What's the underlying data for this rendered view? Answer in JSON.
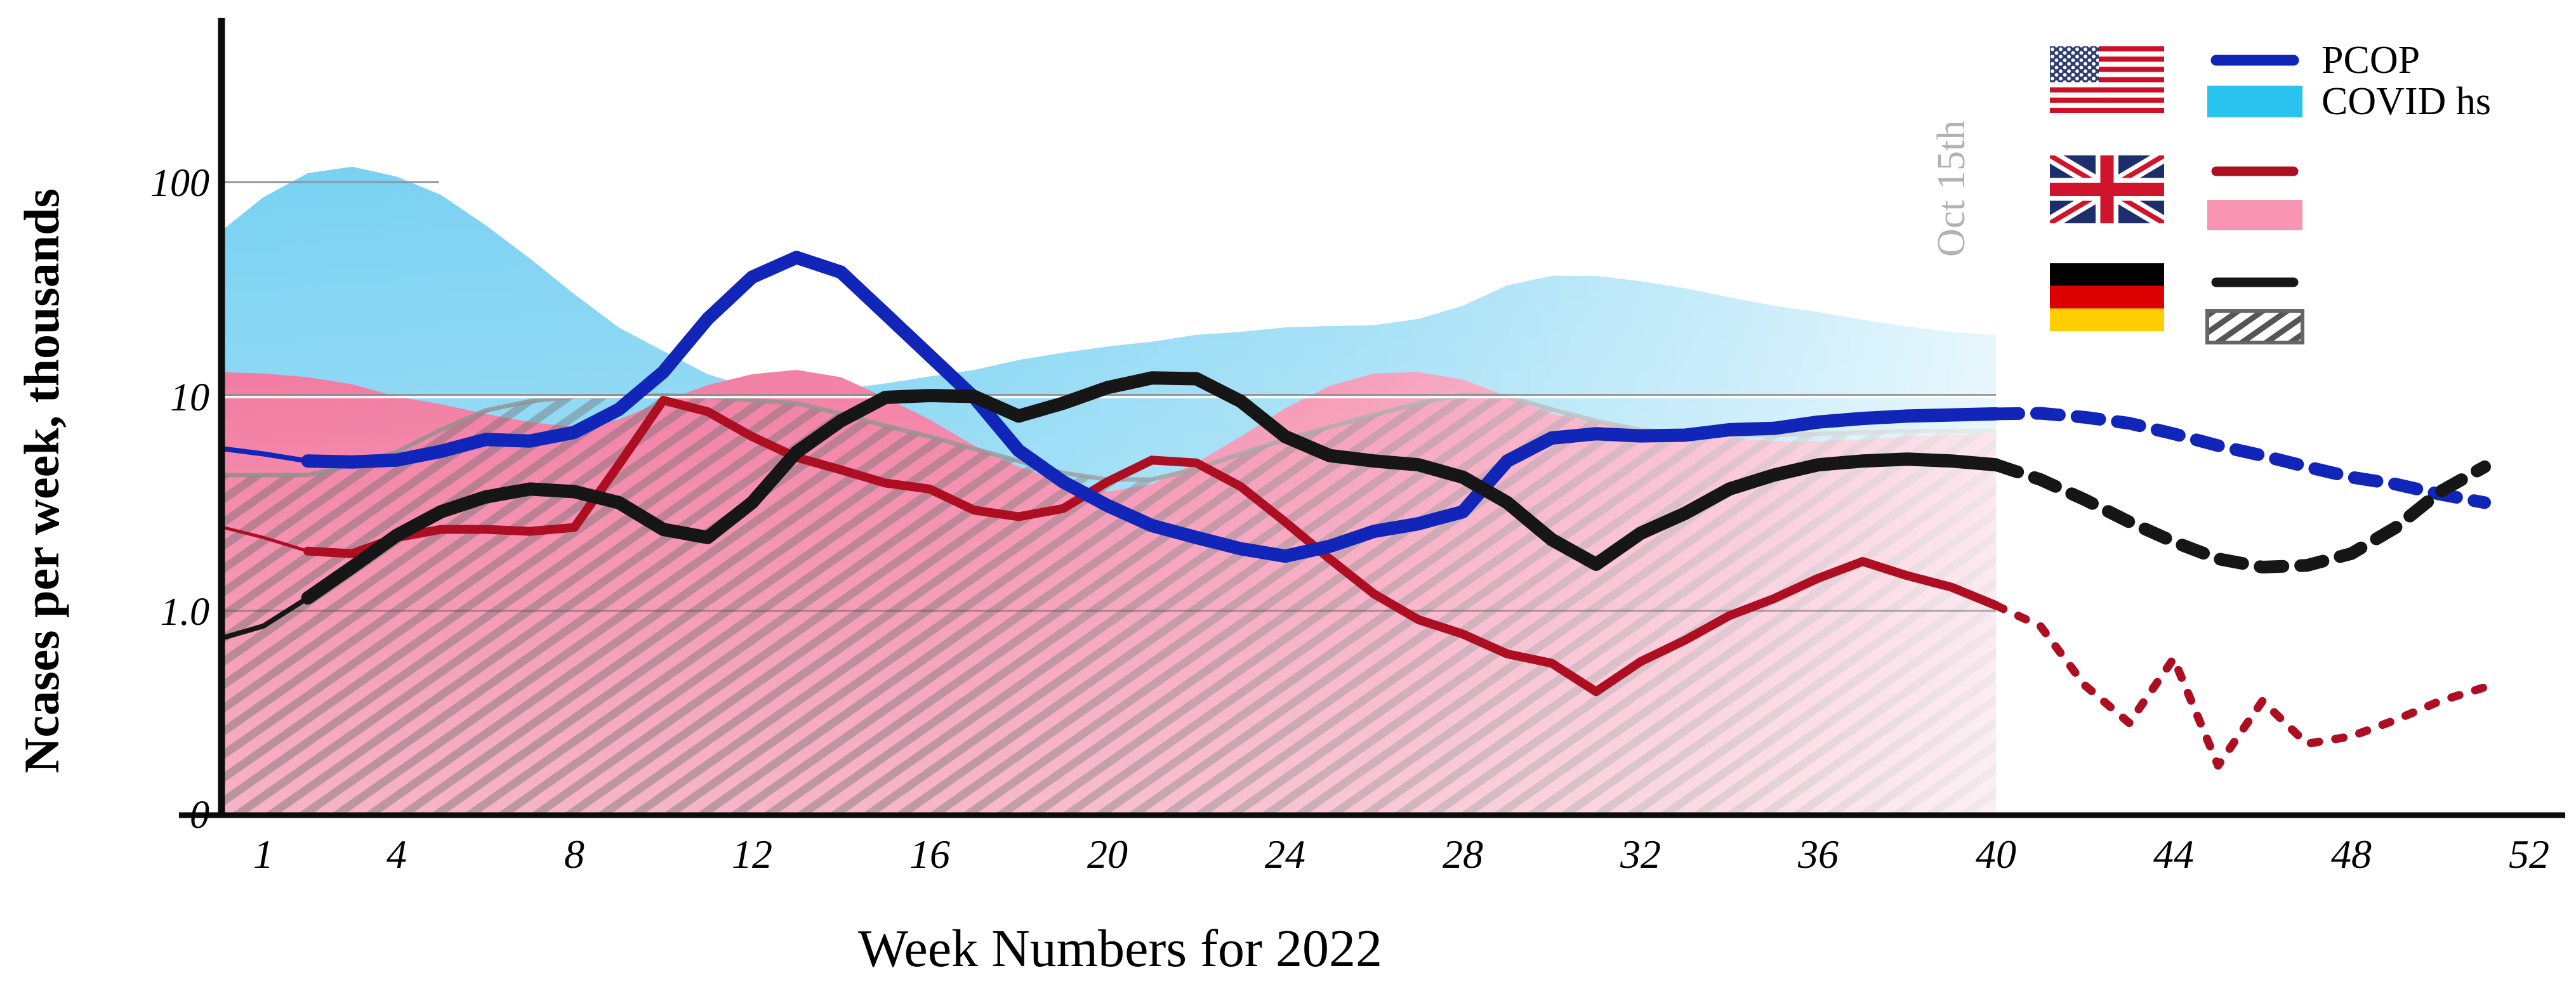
{
  "figure": {
    "x_axis_title": "Week Numbers for 2022",
    "y_axis_title": "Ncases per week, thousands"
  },
  "legend": {
    "rows": [
      {
        "country": "United States",
        "flag_icon": "usa-flag-icon",
        "line_label": "PCOP",
        "area_label": "COVID hs"
      },
      {
        "country": "United Kingdom",
        "flag_icon": "uk-flag-icon",
        "line_label": "",
        "area_label": ""
      },
      {
        "country": "Germany",
        "flag_icon": "germany-flag-icon",
        "line_label": "",
        "area_label": ""
      }
    ]
  },
  "chart_data": {
    "type": "area+line",
    "xlabel": "Week Numbers for 2022",
    "ylabel": "Ncases per week, thousands",
    "y_scale": "log",
    "x_ticks": [
      1,
      4,
      8,
      12,
      16,
      20,
      24,
      28,
      32,
      36,
      40,
      44,
      48,
      52
    ],
    "y_ticks": [
      {
        "label": "100",
        "value": 100
      },
      {
        "label": "10",
        "value": 10
      },
      {
        "label": "1.0",
        "value": 1
      },
      {
        "label": "0",
        "value": 0
      }
    ],
    "weeks_start": 0,
    "forecast_start_week": 40,
    "annotation": {
      "label": "Oct 15th",
      "week": 40
    },
    "gridlines": [
      {
        "value": 100,
        "from_week": 0.1,
        "to_week": 4.95,
        "color": "#8c979c",
        "width": 3
      },
      {
        "value": 10,
        "from_week": 0.1,
        "to_week": 40,
        "color": "#8c8c8c",
        "width": 2.5,
        "offset": -5
      },
      {
        "value": 10,
        "from_week": 0.1,
        "to_week": 40,
        "color": "#ffffff",
        "width": 3.5,
        "offset": 2
      },
      {
        "value": 1,
        "from_week": 0.1,
        "to_week": 40,
        "color": "rgba(70,70,70,0.4)",
        "width": 3,
        "offset": 0
      }
    ],
    "series": [
      {
        "id": "us-covid-hs",
        "country": "United States",
        "legend_label": "COVID hs",
        "kind": "area",
        "color": "#85d4f0",
        "values": [
          58,
          85,
          110,
          118,
          106,
          87,
          63,
          44,
          30,
          21,
          16.3,
          12.7,
          11,
          10.4,
          10.8,
          11.5,
          12.4,
          13.3,
          14.8,
          16,
          17.1,
          18,
          19.4,
          20,
          21,
          21.3,
          21.5,
          23,
          26.5,
          33,
          36.5,
          36.5,
          34.5,
          32,
          29,
          26.5,
          24.8,
          22.8,
          21.2,
          20,
          19.4
        ]
      },
      {
        "id": "uk-covid-hs",
        "country": "United Kingdom",
        "legend_label": "",
        "kind": "area",
        "color": "#f28fae",
        "values": [
          13,
          12.8,
          12.3,
          11.4,
          10,
          9.2,
          8.3,
          7.6,
          7.2,
          7.8,
          9.5,
          11.3,
          12.7,
          13.3,
          12.3,
          9.9,
          7.8,
          5.9,
          4.7,
          4.0,
          3.6,
          3.9,
          4.9,
          6.5,
          8.8,
          11.2,
          12.8,
          13.0,
          12.0,
          10,
          8.3,
          7.6,
          7.1,
          6.6,
          6.4,
          6.2,
          6.2,
          6.3,
          6.5,
          6.6,
          6.7
        ]
      },
      {
        "id": "de-covid-hs",
        "country": "Germany",
        "legend_label": "",
        "kind": "area-hatched",
        "color": "#8f8f8f",
        "values": [
          4.3,
          4.3,
          4.3,
          4.8,
          5.5,
          7.0,
          8.6,
          9.5,
          10,
          10,
          10.1,
          10,
          9.6,
          9.3,
          8.3,
          7.3,
          6.5,
          5.7,
          5.0,
          4.4,
          4.1,
          4.1,
          4.6,
          5.4,
          6.3,
          7.2,
          8.2,
          9.3,
          10.2,
          10.0,
          8.7,
          7.7,
          7.0,
          6.7,
          6.6,
          6.6,
          6.7,
          6.8,
          6.9,
          6.9,
          6.9
        ]
      },
      {
        "id": "us-pcop",
        "country": "United States",
        "legend_label": "PCOP",
        "kind": "line",
        "color": "#1126b8",
        "width": 21,
        "values": [
          5.7,
          5.4,
          5.0,
          4.95,
          5.05,
          5.55,
          6.3,
          6.2,
          6.8,
          8.7,
          13,
          23,
          36,
          44.5,
          38,
          24.3,
          15.5,
          9.9,
          5.6,
          4.0,
          3.1,
          2.5,
          2.2,
          1.95,
          1.8,
          2.0,
          2.35,
          2.55,
          2.9,
          5.0,
          6.4,
          6.7,
          6.55,
          6.6,
          7.0,
          7.1,
          7.6,
          7.9,
          8.1,
          8.2,
          8.3,
          8.35,
          8.0,
          7.5,
          6.7,
          5.9,
          5.3,
          4.7,
          4.2,
          3.9,
          3.5,
          3.2
        ]
      },
      {
        "id": "uk-cases",
        "country": "United Kingdom",
        "legend_label": "",
        "kind": "line",
        "color": "#ad0e22",
        "width": 14,
        "values": [
          2.45,
          2.2,
          1.9,
          1.85,
          2.2,
          2.4,
          2.4,
          2.35,
          2.45,
          4.8,
          9.6,
          8.5,
          6.5,
          5.2,
          4.55,
          3.95,
          3.7,
          2.95,
          2.75,
          3.0,
          4.0,
          5.05,
          4.9,
          3.8,
          2.6,
          1.75,
          1.2,
          0.91,
          0.78,
          0.63,
          0.57,
          0.42,
          0.58,
          0.73,
          0.95,
          1.14,
          1.42,
          1.7,
          1.46,
          1.29,
          1.06,
          0.85,
          0.45,
          0.3,
          0.6,
          0.19,
          0.38,
          0.24,
          0.26,
          0.31,
          0.38,
          0.44
        ]
      },
      {
        "id": "de-cases",
        "country": "Germany",
        "legend_label": "",
        "kind": "line",
        "color": "#161616",
        "width": 21,
        "values": [
          0.75,
          0.85,
          1.15,
          1.6,
          2.25,
          2.9,
          3.4,
          3.7,
          3.6,
          3.2,
          2.4,
          2.2,
          3.2,
          5.5,
          7.7,
          9.9,
          10.1,
          10.0,
          8.1,
          9.3,
          11.0,
          12.2,
          12.1,
          9.5,
          6.5,
          5.3,
          5.0,
          4.8,
          4.2,
          3.2,
          2.15,
          1.65,
          2.3,
          2.85,
          3.7,
          4.3,
          4.8,
          5.0,
          5.1,
          5.0,
          4.8,
          4.1,
          3.3,
          2.6,
          2.1,
          1.75,
          1.6,
          1.63,
          1.85,
          2.45,
          3.6,
          4.7
        ]
      }
    ]
  },
  "colors": {
    "us_line": "#1126b8",
    "us_area": "#85d4f0",
    "uk_line": "#ad0e22",
    "uk_area": "#f28fae",
    "de_line": "#161616",
    "de_area_hatch": "#8f8f8f",
    "axis": "#0b0b0b",
    "annotation_line": "#3f3f3f",
    "annotation_text": "#b2b2b2"
  }
}
